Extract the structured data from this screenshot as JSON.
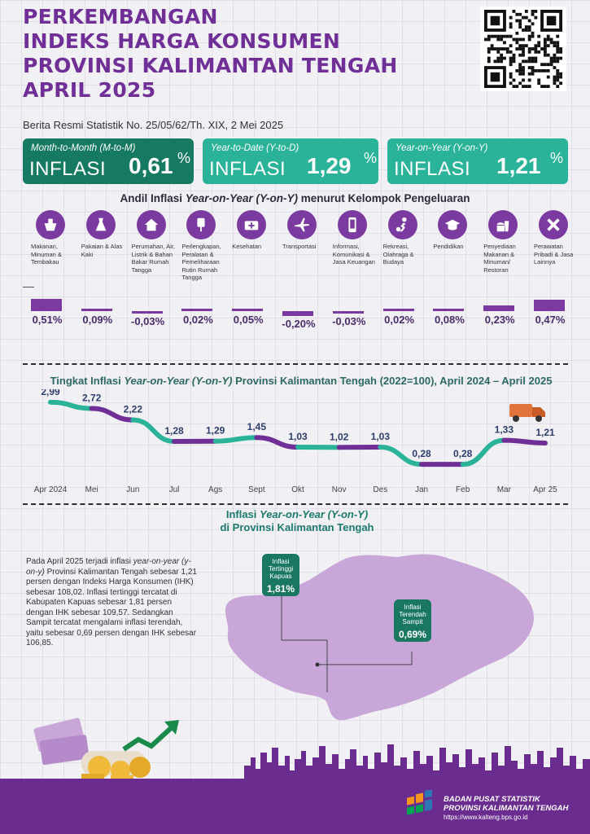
{
  "title": {
    "line1": "PERKEMBANGAN",
    "line2": "INDEKS HARGA KONSUMEN",
    "line3": "PROVINSI KALIMANTAN TENGAH",
    "line4": "APRIL 2025"
  },
  "subtitle": "Berita Resmi Statistik No. 25/05/62/Th. XIX, 2 Mei 2025",
  "boxes": [
    {
      "label": "Month-to-Month (M-to-M)",
      "word": "INFLASI",
      "value": "0,61",
      "unit": "%"
    },
    {
      "label": "Year-to-Date (Y-to-D)",
      "word": "INFLASI",
      "value": "1,29",
      "unit": "%"
    },
    {
      "label": "Year-on-Year (Y-on-Y)",
      "word": "INFLASI",
      "value": "1,21",
      "unit": "%"
    }
  ],
  "andil": {
    "heading_pre": "Andil Inflasi ",
    "heading_it": "Year-on-Year (Y-on-Y)",
    "heading_post": " menurut Kelompok Pengeluaran",
    "categories": [
      {
        "name": "Makanan, Minuman & Tembakau",
        "value": 0.51,
        "label": "0,51%",
        "icon": "food-basket-icon"
      },
      {
        "name": "Pakaian & Alas Kaki",
        "value": 0.09,
        "label": "0,09%",
        "icon": "dress-icon"
      },
      {
        "name": "Perumahan, Air, Listrik & Bahan Bakar Rumah Tangga",
        "value": -0.03,
        "label": "-0,03%",
        "icon": "house-icon"
      },
      {
        "name": "Perlengkapan, Peralatan & Pemeliharaan Rutin Rumah Tangga",
        "value": 0.02,
        "label": "0,02%",
        "icon": "plug-icon"
      },
      {
        "name": "Kesehatan",
        "value": 0.05,
        "label": "0,05%",
        "icon": "medkit-icon"
      },
      {
        "name": "Transportasi",
        "value": -0.2,
        "label": "-0,20%",
        "icon": "airplane-icon"
      },
      {
        "name": "Informasi, Komunikasi & Jasa Keuangan",
        "value": -0.03,
        "label": "-0,03%",
        "icon": "phone-icon"
      },
      {
        "name": "Rekreasi, Olahraga & Budaya",
        "value": 0.02,
        "label": "0,02%",
        "icon": "soccer-icon"
      },
      {
        "name": "Pendidikan",
        "value": 0.08,
        "label": "0,08%",
        "icon": "graduation-cap-icon"
      },
      {
        "name": "Penyediaan Makanan & Minuman/ Restoran",
        "value": 0.23,
        "label": "0,23%",
        "icon": "fastfood-icon"
      },
      {
        "name": "Perawatan Pribadi & Jasa Lainnya",
        "value": 0.47,
        "label": "0,47%",
        "icon": "tools-icon"
      }
    ]
  },
  "chart_data": {
    "type": "line",
    "title": "Tingkat Inflasi Year-on-Year (Y-on-Y) Provinsi Kalimantan Tengah (2022=100), April 2024 – April 2025",
    "title_pre": "Tingkat Inflasi ",
    "title_it": "Year-on-Year (Y-on-Y)",
    "title_post": " Provinsi Kalimantan Tengah (2022=100), April 2024 – April 2025",
    "categories": [
      "Apr 2024",
      "Mei",
      "Jun",
      "Jul",
      "Ags",
      "Sept",
      "Okt",
      "Nov",
      "Des",
      "Jan",
      "Feb",
      "Mar",
      "Apr 25"
    ],
    "values": [
      2.99,
      2.72,
      2.22,
      1.28,
      1.29,
      1.45,
      1.03,
      1.02,
      1.03,
      0.28,
      0.28,
      1.33,
      1.21
    ],
    "labels": [
      "2,99",
      "2,72",
      "2,22",
      "1,28",
      "1,29",
      "1,45",
      "1,03",
      "1,02",
      "1,03",
      "0,28",
      "0,28",
      "1,33",
      "1,21"
    ],
    "ylim": [
      0,
      3.2
    ],
    "colors": {
      "teal": "#2bb39a",
      "purple": "#6f2f97"
    },
    "icon": "truck-icon"
  },
  "map": {
    "title_pre": "Inflasi ",
    "title_it": "Year-on-Year (Y-on-Y)",
    "title_line2": "di Provinsi Kalimantan Tengah",
    "paragraph_1": "Pada April 2025 terjadi inflasi ",
    "paragraph_it": "year-on-year (y-on-y)",
    "paragraph_2": " Provinsi Kalimantan Tengah sebesar 1,21 persen dengan Indeks Harga Konsumen (IHK) sebesar 108,02. Inflasi tertinggi tercatat di Kabupaten Kapuas sebesar 1,81 persen dengan IHK sebesar 109,57. Sedangkan Sampit tercatat mengalami inflasi terendah, yaitu sebesar 0,69 persen dengan IHK sebesar 106,85.",
    "high": {
      "label": "Inflasi Tertinggi Kapuas",
      "value": "1,81%"
    },
    "low": {
      "label": "Inflasi Terendah Sampit",
      "value": "0,69%"
    },
    "map_color": "#c9a6d8"
  },
  "footer": {
    "org_line1": "BADAN PUSAT STATISTIK",
    "org_line2": "PROVINSI KALIMANTAN TENGAH",
    "url": "https://www.kalteng.bps.go.id",
    "bg": "#6a2c8f"
  }
}
